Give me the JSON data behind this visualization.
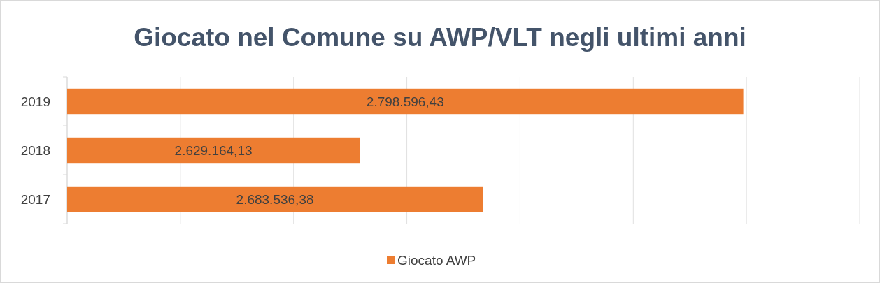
{
  "chart_data": {
    "type": "bar",
    "orientation": "horizontal",
    "title": "Giocato nel Comune su AWP/VLT negli ultimi anni",
    "categories": [
      "2019",
      "2018",
      "2017"
    ],
    "series": [
      {
        "name": "Giocato AWP",
        "color": "#ed7d31",
        "values": [
          2798596.43,
          2629164.13,
          2683536.38
        ],
        "value_labels": [
          "2.798.596,43",
          "2.629.164,13",
          "2.683.536,38"
        ]
      }
    ],
    "xlim": [
      2500000,
      2850000
    ],
    "xticks": [
      {
        "value": 2500000,
        "label": null
      },
      {
        "value": 2550000,
        "label": null
      },
      {
        "value": 2600000,
        "label": null
      },
      {
        "value": 2650000,
        "label": null
      },
      {
        "value": 2700000,
        "label": null
      },
      {
        "value": 2750000,
        "label": null
      },
      {
        "value": 2800000,
        "label": null
      },
      {
        "value": 2850000,
        "label": null
      }
    ],
    "tick_labels": "y",
    "grid": "x",
    "legend": "bottom"
  }
}
